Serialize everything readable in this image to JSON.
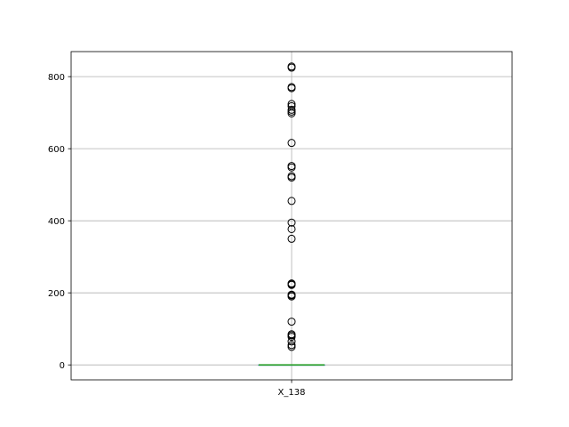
{
  "chart_data": {
    "type": "box",
    "title": "",
    "xlabel": "",
    "ylabel": "",
    "categories": [
      "X_138"
    ],
    "ylim": [
      -41.5,
      869.5
    ],
    "yticks": [
      0,
      200,
      400,
      600,
      800
    ],
    "grid": true,
    "box": {
      "q1": 0,
      "median": 0,
      "q3": 0,
      "whisker_low": 0,
      "whisker_high": 0
    },
    "outliers": [
      50,
      55,
      65,
      78,
      82,
      85,
      120,
      190,
      193,
      195,
      222,
      224,
      226,
      350,
      377,
      395,
      455,
      520,
      524,
      548,
      552,
      616,
      698,
      703,
      708,
      718,
      724,
      768,
      771,
      825,
      828
    ],
    "colors": {
      "median": "#2ca02c",
      "box": "#1f77b4",
      "grid": "#b0b0b0",
      "outlier": "#000000"
    }
  }
}
